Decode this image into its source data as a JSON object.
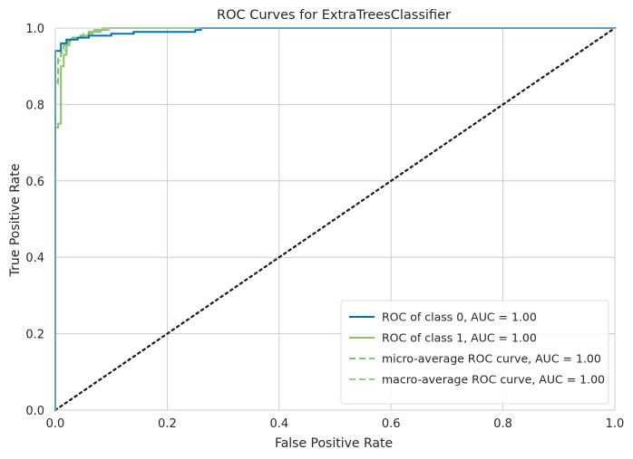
{
  "chart_data": {
    "type": "line",
    "title": "ROC Curves for ExtraTreesClassifier",
    "xlabel": "False Positive Rate",
    "ylabel": "True Positive Rate",
    "xlim": [
      0,
      1
    ],
    "ylim": [
      0,
      1
    ],
    "x_ticks": [
      "0.0",
      "0.2",
      "0.4",
      "0.6",
      "0.8",
      "1.0"
    ],
    "y_ticks": [
      "0.0",
      "0.2",
      "0.4",
      "0.6",
      "0.8",
      "1.0"
    ],
    "grid": true,
    "legend_position": "lower right",
    "series": [
      {
        "name": "ROC of class 0, AUC = 1.00",
        "color": "#0072B2",
        "dash": "solid",
        "points": [
          [
            0,
            0
          ],
          [
            0,
            0.94
          ],
          [
            0.01,
            0.94
          ],
          [
            0.01,
            0.96
          ],
          [
            0.02,
            0.96
          ],
          [
            0.02,
            0.97
          ],
          [
            0.04,
            0.97
          ],
          [
            0.04,
            0.975
          ],
          [
            0.06,
            0.975
          ],
          [
            0.06,
            0.98
          ],
          [
            0.1,
            0.98
          ],
          [
            0.1,
            0.985
          ],
          [
            0.14,
            0.985
          ],
          [
            0.14,
            0.99
          ],
          [
            0.25,
            0.99
          ],
          [
            0.25,
            0.995
          ],
          [
            0.26,
            0.995
          ],
          [
            0.26,
            1.0
          ],
          [
            1.0,
            1.0
          ]
        ]
      },
      {
        "name": "ROC of class 1, AUC = 1.00",
        "color": "#8CC16B",
        "dash": "solid",
        "points": [
          [
            0,
            0
          ],
          [
            0,
            0.74
          ],
          [
            0.005,
            0.74
          ],
          [
            0.005,
            0.75
          ],
          [
            0.01,
            0.75
          ],
          [
            0.01,
            0.9
          ],
          [
            0.015,
            0.9
          ],
          [
            0.015,
            0.93
          ],
          [
            0.02,
            0.93
          ],
          [
            0.02,
            0.955
          ],
          [
            0.025,
            0.955
          ],
          [
            0.025,
            0.97
          ],
          [
            0.035,
            0.97
          ],
          [
            0.035,
            0.975
          ],
          [
            0.045,
            0.975
          ],
          [
            0.045,
            0.98
          ],
          [
            0.06,
            0.98
          ],
          [
            0.06,
            0.99
          ],
          [
            0.07,
            0.99
          ],
          [
            0.07,
            0.995
          ],
          [
            0.09,
            0.995
          ],
          [
            0.09,
            1.0
          ],
          [
            1.0,
            1.0
          ]
        ]
      },
      {
        "name": "micro-average ROC curve, AUC = 1.00",
        "color": "#8CC16B",
        "dash": "dashed",
        "points": [
          [
            0,
            0
          ],
          [
            0,
            0.85
          ],
          [
            0.005,
            0.85
          ],
          [
            0.005,
            0.92
          ],
          [
            0.01,
            0.92
          ],
          [
            0.01,
            0.935
          ],
          [
            0.015,
            0.935
          ],
          [
            0.015,
            0.955
          ],
          [
            0.02,
            0.955
          ],
          [
            0.02,
            0.965
          ],
          [
            0.03,
            0.965
          ],
          [
            0.03,
            0.975
          ],
          [
            0.05,
            0.975
          ],
          [
            0.05,
            0.985
          ],
          [
            0.07,
            0.985
          ],
          [
            0.07,
            0.99
          ],
          [
            0.085,
            0.99
          ],
          [
            0.085,
            1.0
          ],
          [
            1.0,
            1.0
          ]
        ]
      },
      {
        "name": "macro-average ROC curve, AUC = 1.00",
        "color": "#9DC985",
        "dash": "dashed",
        "points": [
          [
            0,
            0
          ],
          [
            0,
            0.86
          ],
          [
            0.005,
            0.86
          ],
          [
            0.005,
            0.915
          ],
          [
            0.01,
            0.915
          ],
          [
            0.01,
            0.94
          ],
          [
            0.02,
            0.94
          ],
          [
            0.02,
            0.96
          ],
          [
            0.025,
            0.96
          ],
          [
            0.025,
            0.975
          ],
          [
            0.04,
            0.975
          ],
          [
            0.04,
            0.98
          ],
          [
            0.06,
            0.98
          ],
          [
            0.06,
            0.99
          ],
          [
            0.08,
            0.99
          ],
          [
            0.08,
            0.995
          ],
          [
            0.1,
            0.995
          ],
          [
            0.1,
            1.0
          ],
          [
            1.0,
            1.0
          ]
        ]
      }
    ],
    "diagonal": {
      "color": "#1a1a1a",
      "dash": "dotted",
      "points": [
        [
          0,
          0
        ],
        [
          1,
          1
        ]
      ]
    }
  }
}
